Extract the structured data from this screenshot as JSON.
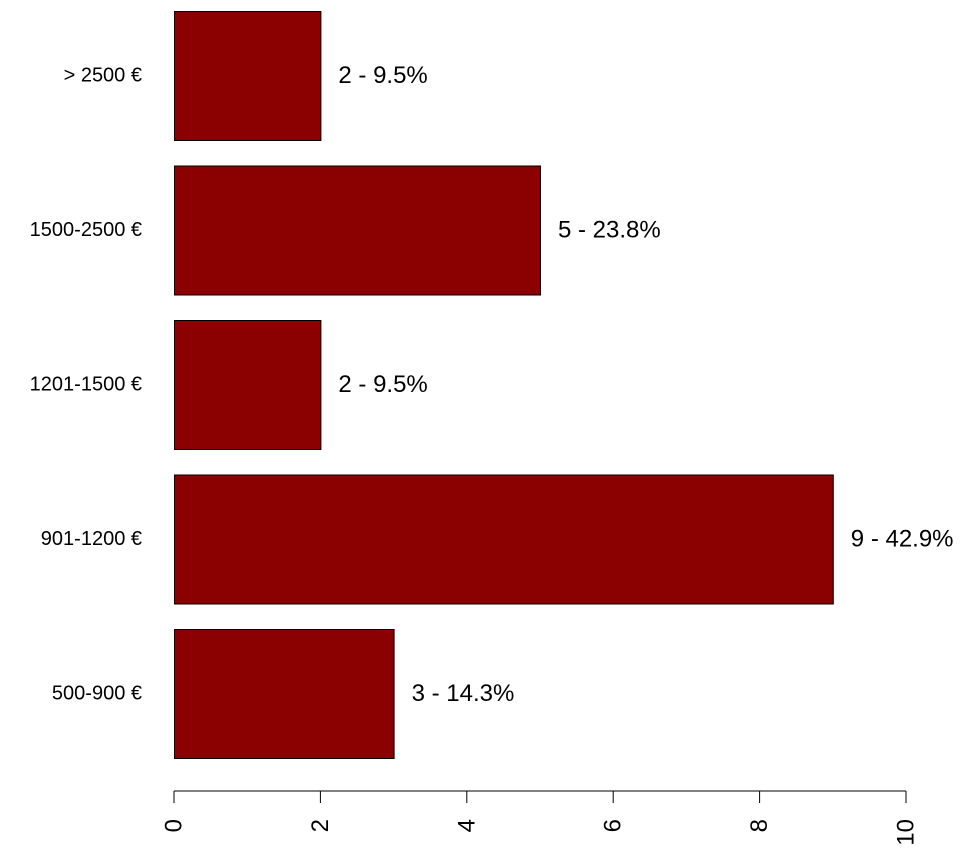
{
  "chart_data": {
    "type": "bar",
    "orientation": "horizontal",
    "categories": [
      "500-900 €",
      "901-1200 €",
      "1201-1500 €",
      "1500-2500 €",
      "> 2500 €"
    ],
    "values": [
      3,
      9,
      2,
      5,
      2
    ],
    "data_labels": [
      "3 - 14.3%",
      "9 - 42.9%",
      "2 - 9.5%",
      "5 - 23.8%",
      "2 - 9.5%"
    ],
    "title": "",
    "xlabel": "",
    "ylabel": "",
    "xlim": [
      0,
      10
    ],
    "xticks": [
      0,
      2,
      4,
      6,
      8,
      10
    ],
    "xtick_labels": [
      "0",
      "2",
      "4",
      "6",
      "8",
      "10"
    ],
    "grid": false,
    "legend": "none",
    "bar_color": "#8B0000",
    "bar_border_color": "#000000"
  }
}
